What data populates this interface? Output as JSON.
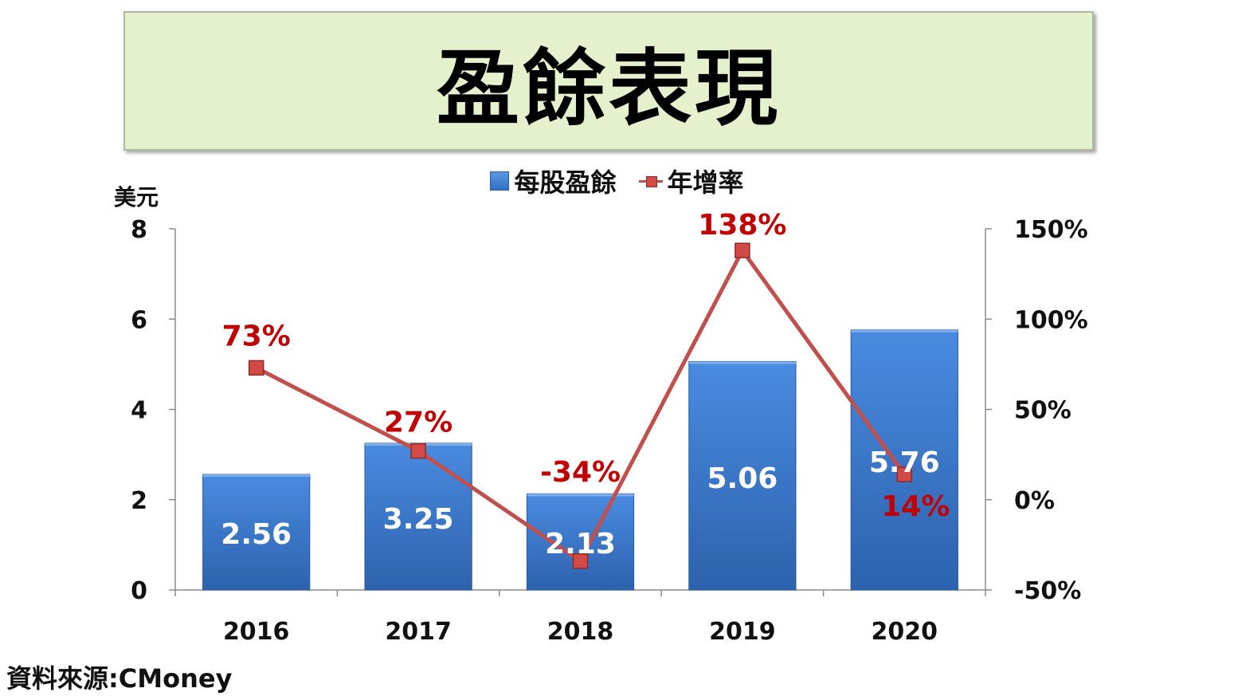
{
  "title": "盈餘表現",
  "source": "資料來源:CMoney",
  "chart_data": {
    "type": "bar",
    "categories": [
      "2016",
      "2017",
      "2018",
      "2019",
      "2020"
    ],
    "series": [
      {
        "name": "每股盈餘",
        "type": "bar",
        "axis": "left",
        "values": [
          2.56,
          3.25,
          2.13,
          5.06,
          5.76
        ],
        "labels": [
          "2.56",
          "3.25",
          "2.13",
          "5.06",
          "5.76"
        ]
      },
      {
        "name": "年增率",
        "type": "line",
        "axis": "right",
        "values": [
          73,
          27,
          -34,
          138,
          14
        ],
        "labels": [
          "73%",
          "27%",
          "-34%",
          "138%",
          "14%"
        ]
      }
    ],
    "ylabel": "美元",
    "ylim": [
      0,
      8
    ],
    "yticks": [
      "0",
      "2",
      "4",
      "6",
      "8"
    ],
    "y2lim": [
      -50,
      150
    ],
    "y2ticks": [
      "-50%",
      "0%",
      "50%",
      "100%",
      "150%"
    ],
    "legend_position": "top-center",
    "grid": false,
    "colors": {
      "bar": "#3f7fd3",
      "line": "#c0504d",
      "line_label": "#c00000"
    }
  }
}
